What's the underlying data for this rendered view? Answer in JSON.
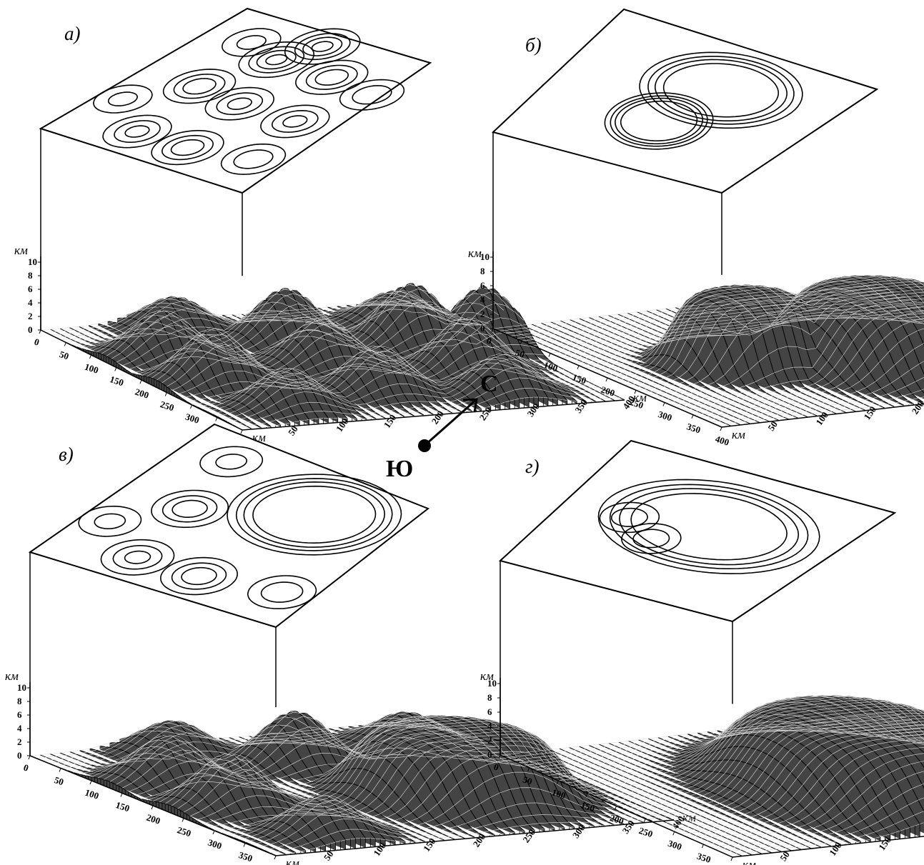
{
  "compass": {
    "north": "С",
    "south": "Ю"
  },
  "chart_data": [
    {
      "panel": "а)",
      "type": "surface3d",
      "xlabel": "км",
      "ylabel": "км",
      "zlabel": "км",
      "xlim": [
        0,
        400
      ],
      "ylim": [
        0,
        400
      ],
      "zlim": [
        0,
        10
      ],
      "x_ticks": [
        0,
        50,
        100,
        150,
        200,
        250,
        300,
        350,
        400
      ],
      "y_ticks": [
        50,
        100,
        150,
        200,
        250,
        300,
        350,
        400
      ],
      "z_ticks": [
        0,
        2,
        4,
        6,
        8,
        10
      ],
      "contour_levels": [
        0,
        2,
        4,
        6,
        8,
        10
      ],
      "peaks": [
        {
          "x": 40,
          "y": 120,
          "h": 5
        },
        {
          "x": 130,
          "y": 60,
          "h": 7
        },
        {
          "x": 230,
          "y": 60,
          "h": 8
        },
        {
          "x": 340,
          "y": 80,
          "h": 6
        },
        {
          "x": 110,
          "y": 200,
          "h": 8
        },
        {
          "x": 200,
          "y": 190,
          "h": 7
        },
        {
          "x": 310,
          "y": 190,
          "h": 7
        },
        {
          "x": 150,
          "y": 310,
          "h": 9
        },
        {
          "x": 260,
          "y": 310,
          "h": 8
        },
        {
          "x": 350,
          "y": 300,
          "h": 6
        },
        {
          "x": 180,
          "y": 370,
          "h": 9
        },
        {
          "x": 80,
          "y": 330,
          "h": 5
        }
      ]
    },
    {
      "panel": "б)",
      "type": "surface3d",
      "xlabel": "км",
      "ylabel": "км",
      "zlabel": "км",
      "xlim": [
        0,
        400
      ],
      "ylim": [
        0,
        400
      ],
      "zlim": [
        0,
        10
      ],
      "x_ticks": [
        0,
        50,
        100,
        150,
        200,
        250,
        300,
        350,
        400
      ],
      "y_ticks": [
        50,
        100,
        150,
        200,
        250,
        300,
        350,
        400
      ],
      "z_ticks": [
        0,
        2,
        4,
        6,
        8,
        10
      ],
      "contour_levels": [
        0,
        2,
        4,
        6,
        8,
        10
      ],
      "plateaus": [
        {
          "x": 250,
          "y": 260,
          "rx": 110,
          "ry": 90,
          "h": 10
        },
        {
          "x": 210,
          "y": 140,
          "rx": 70,
          "ry": 70,
          "h": 10
        }
      ]
    },
    {
      "panel": "в)",
      "type": "surface3d",
      "xlabel": "км",
      "ylabel": "км",
      "zlabel": "км",
      "xlim": [
        0,
        400
      ],
      "ylim": [
        0,
        400
      ],
      "zlim": [
        0,
        10
      ],
      "x_ticks": [
        0,
        50,
        100,
        150,
        200,
        250,
        300,
        350,
        400
      ],
      "y_ticks": [
        50,
        100,
        150,
        200,
        250,
        300,
        350,
        400
      ],
      "z_ticks": [
        0,
        2,
        4,
        6,
        8,
        10
      ],
      "contour_levels": [
        0,
        2,
        4,
        6,
        8,
        10
      ],
      "peaks": [
        {
          "x": 40,
          "y": 120,
          "h": 5
        },
        {
          "x": 130,
          "y": 60,
          "h": 7
        },
        {
          "x": 230,
          "y": 60,
          "h": 8
        },
        {
          "x": 110,
          "y": 200,
          "h": 8
        },
        {
          "x": 80,
          "y": 330,
          "h": 5
        },
        {
          "x": 350,
          "y": 80,
          "h": 6
        }
      ],
      "plateaus": [
        {
          "x": 260,
          "y": 270,
          "rx": 100,
          "ry": 90,
          "h": 10
        }
      ]
    },
    {
      "panel": "г)",
      "type": "surface3d",
      "xlabel": "км",
      "ylabel": "км",
      "zlabel": "км",
      "xlim": [
        0,
        400
      ],
      "ylim": [
        0,
        400
      ],
      "zlim": [
        0,
        10
      ],
      "x_ticks": [
        0,
        50,
        100,
        150,
        200,
        250,
        300,
        350,
        400
      ],
      "y_ticks": [
        50,
        100,
        150,
        200,
        250,
        300,
        350,
        400
      ],
      "z_ticks": [
        0,
        2,
        4,
        6,
        8,
        10
      ],
      "contour_levels": [
        0,
        2,
        4,
        6,
        8,
        10
      ],
      "peaks": [
        {
          "x": 110,
          "y": 200,
          "h": 6
        },
        {
          "x": 170,
          "y": 160,
          "h": 6
        }
      ],
      "plateaus": [
        {
          "x": 230,
          "y": 230,
          "rx": 150,
          "ry": 110,
          "h": 10
        }
      ]
    }
  ]
}
